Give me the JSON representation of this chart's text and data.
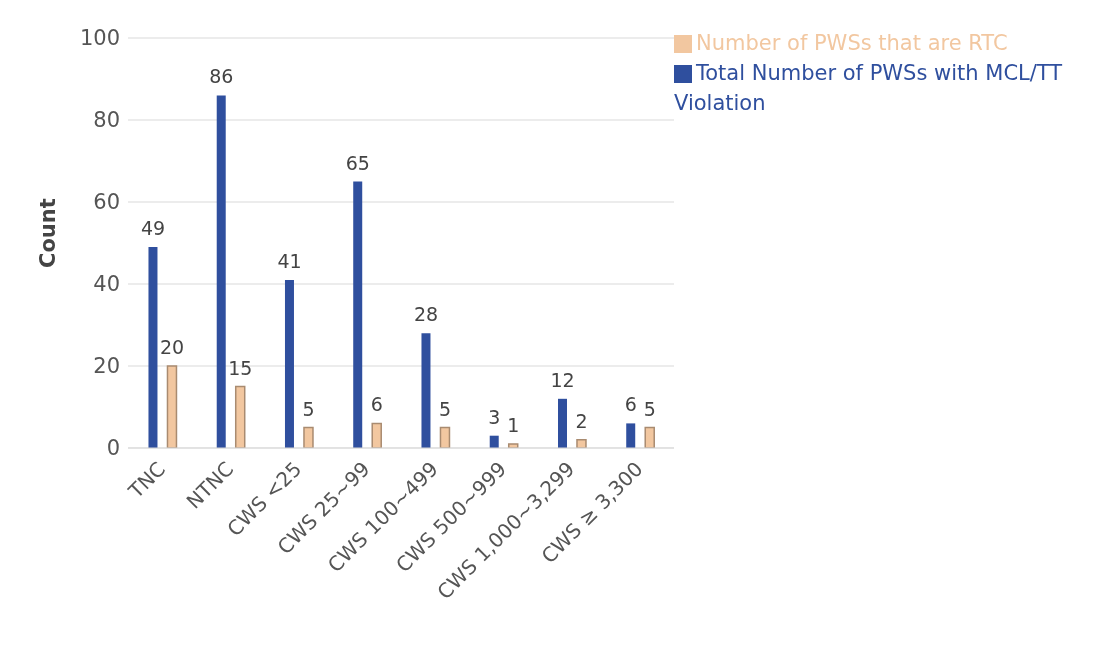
{
  "chart_data": {
    "type": "bar",
    "ylabel": "Count",
    "categories": [
      "TNC",
      "NTNC",
      "CWS <25",
      "CWS 25~99",
      "CWS 100~499",
      "CWS 500~999",
      "CWS 1,000~3,299",
      "CWS ≥ 3,300"
    ],
    "series": [
      {
        "name": "Total Number of PWSs with MCL/TT Violation",
        "color": "#2f4f9e",
        "values": [
          49,
          86,
          41,
          65,
          28,
          3,
          12,
          6
        ]
      },
      {
        "name": "Number of PWSs that are RTC",
        "color": "#f2c7a0",
        "values": [
          20,
          15,
          5,
          6,
          5,
          1,
          2,
          5
        ]
      }
    ],
    "ylim": [
      0,
      100
    ],
    "yticks": [
      0,
      20,
      40,
      60,
      80,
      100
    ],
    "grid": "y",
    "legend": "top right",
    "data_labels": true
  }
}
